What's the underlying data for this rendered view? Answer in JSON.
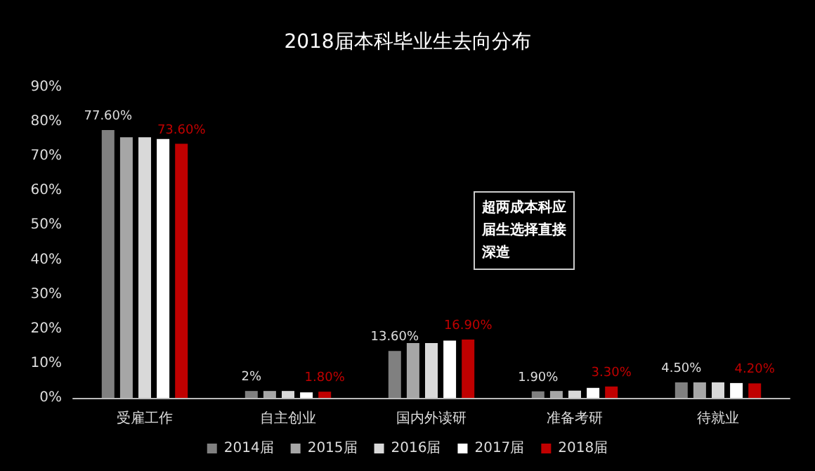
{
  "chart_data": {
    "type": "bar",
    "title": "2018届本科毕业生去向分布",
    "categories": [
      "受雇工作",
      "自主创业",
      "国内外读研",
      "准备考研",
      "待就业"
    ],
    "series": [
      {
        "name": "2014届",
        "color": "#808080",
        "values": [
          77.6,
          2,
          13.6,
          1.9,
          4.5
        ],
        "value_labels": [
          "77.60%",
          "2%",
          "13.60%",
          "1.90%",
          "4.50%"
        ]
      },
      {
        "name": "2015届",
        "color": "#a6a6a6",
        "values": [
          75.5,
          2,
          15.9,
          2,
          4.5
        ]
      },
      {
        "name": "2016届",
        "color": "#d9d9d9",
        "values": [
          75.5,
          2,
          15.9,
          2.1,
          4.5
        ]
      },
      {
        "name": "2017届",
        "color": "#ffffff",
        "values": [
          75,
          1.6,
          16.6,
          2.9,
          4.3
        ]
      },
      {
        "name": "2018届",
        "color": "#c00000",
        "values": [
          73.6,
          1.8,
          16.9,
          3.3,
          4.2
        ],
        "value_labels": [
          "73.60%",
          "1.80%",
          "16.90%",
          "3.30%",
          "4.20%"
        ]
      }
    ],
    "ylim": [
      0,
      90
    ],
    "yticks": [
      {
        "value": 0,
        "label": "0%"
      },
      {
        "value": 10,
        "label": "10%"
      },
      {
        "value": 20,
        "label": "20%"
      },
      {
        "value": 30,
        "label": "30%"
      },
      {
        "value": 40,
        "label": "40%"
      },
      {
        "value": 50,
        "label": "50%"
      },
      {
        "value": 60,
        "label": "60%"
      },
      {
        "value": 70,
        "label": "70%"
      },
      {
        "value": 80,
        "label": "80%"
      },
      {
        "value": 90,
        "label": "90%"
      }
    ],
    "annotations": [
      "超两成本科应届生选择直接深造"
    ],
    "grid": false,
    "legend": "bottom"
  }
}
